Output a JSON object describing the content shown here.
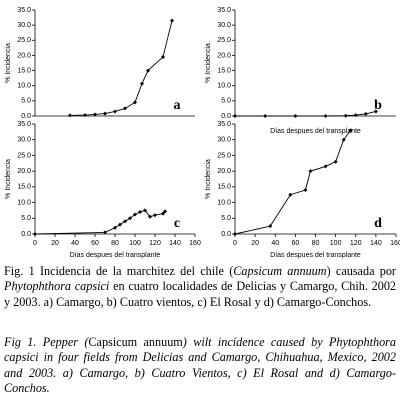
{
  "chart_data": [
    {
      "type": "line",
      "annotation": "a",
      "ylabel": "% Incidencia",
      "color": "#000000",
      "x": [
        35,
        50,
        60,
        70,
        80,
        90,
        100,
        107,
        113,
        128,
        137
      ],
      "values": [
        0.2,
        0.3,
        0.5,
        0.8,
        1.5,
        2.5,
        4.5,
        10.7,
        15,
        19.5,
        31.5
      ],
      "xlim": [
        0,
        160
      ],
      "ylim": [
        0,
        35
      ],
      "yticks": [
        {
          "value": 0,
          "label": "0.0"
        },
        {
          "value": 5,
          "label": "5.0"
        },
        {
          "value": 10,
          "label": "10.0"
        },
        {
          "value": 15,
          "label": "15.0"
        },
        {
          "value": 20,
          "label": "20.0"
        },
        {
          "value": 25,
          "label": "25.0"
        },
        {
          "value": 30,
          "label": "30.0"
        },
        {
          "value": 35,
          "label": "35.0"
        }
      ]
    },
    {
      "type": "line",
      "annotation": "b",
      "ylabel": "% Incidencia",
      "xlabel": "Días despues del transplante",
      "color": "#000000",
      "x": [
        0,
        30,
        60,
        90,
        110,
        120,
        130,
        140
      ],
      "values": [
        0,
        0,
        0,
        0,
        0.1,
        0.3,
        0.7,
        1.5
      ],
      "xlim": [
        0,
        160
      ],
      "ylim": [
        0,
        35
      ],
      "yticks": [
        {
          "value": 0,
          "label": "0.0"
        },
        {
          "value": 5,
          "label": "5.0"
        },
        {
          "value": 10,
          "label": "10.0"
        },
        {
          "value": 15,
          "label": "15.0"
        },
        {
          "value": 20,
          "label": "20.0"
        },
        {
          "value": 25,
          "label": "25.0"
        },
        {
          "value": 30,
          "label": "30.0"
        },
        {
          "value": 35,
          "label": "35.0"
        }
      ]
    },
    {
      "type": "line",
      "annotation": "c",
      "ylabel": "% Incidencia",
      "xlabel": "Días despues del transplante",
      "color": "#000000",
      "x": [
        0,
        70,
        80,
        85,
        90,
        95,
        100,
        105,
        110,
        115,
        120,
        128,
        130
      ],
      "values": [
        0,
        0.5,
        2,
        3,
        4,
        5,
        6.2,
        7,
        7.5,
        5.5,
        6,
        6.5,
        7.2
      ],
      "xlim": [
        0,
        160
      ],
      "ylim": [
        0,
        35
      ],
      "xticks": [
        0,
        20,
        40,
        60,
        80,
        100,
        120,
        140,
        160
      ],
      "yticks": [
        {
          "value": 0,
          "label": "0.0"
        },
        {
          "value": 5,
          "label": "5.0"
        },
        {
          "value": 10,
          "label": "10.0"
        },
        {
          "value": 15,
          "label": "15.0"
        },
        {
          "value": 20,
          "label": "20.0"
        },
        {
          "value": 25,
          "label": "25.0"
        },
        {
          "value": 30,
          "label": "30.0"
        },
        {
          "value": 35,
          "label": "35.0"
        }
      ]
    },
    {
      "type": "line",
      "annotation": "d",
      "ylabel": "% Incidencia",
      "xlabel": "Días despues del transplante",
      "color": "#000000",
      "x": [
        0,
        35,
        55,
        70,
        75,
        90,
        100,
        108,
        115
      ],
      "values": [
        0,
        2.5,
        12.5,
        14,
        20,
        21.5,
        23,
        30,
        33
      ],
      "xlim": [
        0,
        160
      ],
      "ylim": [
        0,
        35
      ],
      "xticks": [
        0,
        20,
        40,
        60,
        80,
        100,
        120,
        140,
        160
      ],
      "yticks": [
        {
          "value": 0,
          "label": "0.0"
        },
        {
          "value": 5,
          "label": "5.0"
        },
        {
          "value": 10,
          "label": "10.0"
        },
        {
          "value": 15,
          "label": "15.0"
        },
        {
          "value": 20,
          "label": "20.0"
        },
        {
          "value": 25,
          "label": "25.0"
        },
        {
          "value": 30,
          "label": "30.0"
        },
        {
          "value": 35,
          "label": "35.0"
        }
      ]
    }
  ],
  "caption_es": [
    "Fig. 1 Incidencia de la marchitez del chile (",
    "Capsicum annuum",
    ") causada por ",
    "Phytophthora capsici",
    " en cuatro localidades de Delicias y Camargo, Chih. 2002 y 2003. a) Camargo, b) Cuatro vientos, c) El Rosal y d) Camargo-Conchos."
  ],
  "caption_en": [
    "Fig 1. Pepper (",
    "Capsicum annuum",
    ") wilt incidence caused by ",
    "Phytophthora capsici",
    " in four fields from Delicias and Camargo, Chihuahua, Mexico, 2002 and 2003. a) Camargo, b) Cuatro Vientos, c) El Rosal and d) Camargo-Conchos."
  ]
}
